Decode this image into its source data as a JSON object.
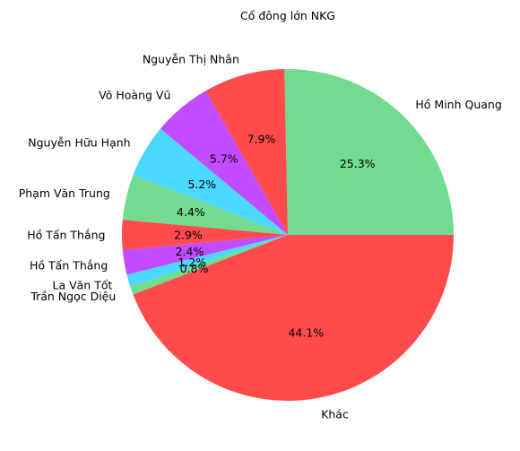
{
  "chart_data": {
    "type": "pie",
    "title": "Cổ đông lớn NKG",
    "slices": [
      {
        "label": "Hồ Minh Quang",
        "value": 25.3,
        "pct_label": "25.3%",
        "color": "#72db8f"
      },
      {
        "label": "Nguyễn Thị Nhân",
        "value": 7.9,
        "pct_label": "7.9%",
        "color": "#ff4b4b"
      },
      {
        "label": "Võ Hoàng Vũ",
        "value": 5.7,
        "pct_label": "5.7%",
        "color": "#c34bff"
      },
      {
        "label": "Nguyễn Hữu Hạnh",
        "value": 5.2,
        "pct_label": "5.2%",
        "color": "#4bd7ff"
      },
      {
        "label": "Phạm Văn Trung",
        "value": 4.4,
        "pct_label": "4.4%",
        "color": "#72db8f"
      },
      {
        "label": "Hồ Tấn Thắng",
        "value": 2.9,
        "pct_label": "2.9%",
        "color": "#ff4b4b"
      },
      {
        "label": "Hồ Tấn Thắng",
        "value": 2.4,
        "pct_label": "2.4%",
        "color": "#c34bff"
      },
      {
        "label": "La Văn Tốt",
        "value": 1.2,
        "pct_label": "1.2%",
        "color": "#4bd7ff"
      },
      {
        "label": "Trần Ngọc Diệu",
        "value": 0.8,
        "pct_label": "0.8%",
        "color": "#72db8f"
      },
      {
        "label": "Khác",
        "value": 44.1,
        "pct_label": "44.1%",
        "color": "#ff4b4b"
      }
    ],
    "start_angle_deg": 0,
    "direction": "counterclockwise"
  }
}
